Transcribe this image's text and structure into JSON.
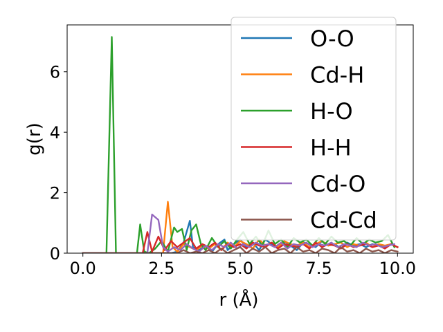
{
  "chart_data": {
    "type": "line",
    "title": "",
    "xlabel": "r (Å)",
    "ylabel": "g(r)",
    "xlim": [
      -0.5,
      10.5
    ],
    "ylim": [
      0,
      7.55
    ],
    "xticks": [
      0.0,
      2.5,
      5.0,
      7.5,
      10.0
    ],
    "xtick_labels": [
      "0.0",
      "2.5",
      "5.0",
      "7.5",
      "10.0"
    ],
    "yticks": [
      0,
      2,
      4,
      6
    ],
    "ytick_labels": [
      "0",
      "2",
      "4",
      "6"
    ],
    "grid": false,
    "legend_position": "top-right",
    "series": [
      {
        "name": "O-O",
        "color": "#1f77b4",
        "x": [
          0.0,
          0.5,
          1.0,
          1.5,
          2.0,
          2.5,
          2.8,
          3.0,
          3.2,
          3.4,
          3.5,
          3.7,
          3.9,
          4.1,
          4.3,
          4.5,
          4.6,
          4.8,
          5.0,
          5.2,
          5.4,
          5.6,
          5.8,
          6.0,
          6.2,
          6.4,
          6.6,
          6.8,
          7.0,
          7.2,
          7.4,
          7.6,
          7.8,
          8.0,
          8.2,
          8.4,
          8.6,
          8.8,
          9.0,
          9.2,
          9.4,
          9.6,
          9.8,
          10.0
        ],
        "y": [
          0,
          0,
          0,
          0,
          0,
          0,
          0,
          0.05,
          0.35,
          1.07,
          0.2,
          0.1,
          0.25,
          0.05,
          0.3,
          0.45,
          0.1,
          0.3,
          0.45,
          0.2,
          0.35,
          0.1,
          0.45,
          0.3,
          0.15,
          0.4,
          0.25,
          0.1,
          0.35,
          0.3,
          0.2,
          0.4,
          0.25,
          0.3,
          0.15,
          0.35,
          0.25,
          0.3,
          0.2,
          0.3,
          0.25,
          0.2,
          0.3,
          0.2
        ]
      },
      {
        "name": "Cd-H",
        "color": "#ff7f0e",
        "x": [
          0.0,
          0.5,
          1.0,
          1.5,
          2.0,
          2.4,
          2.55,
          2.7,
          2.85,
          3.0,
          3.2,
          3.4,
          3.6,
          3.8,
          4.0,
          4.2,
          4.4,
          4.6,
          4.8,
          5.0,
          5.2,
          5.4,
          5.6,
          5.8,
          6.0,
          6.2,
          6.4,
          6.6,
          6.8,
          7.0,
          7.2,
          7.4,
          7.6,
          7.8,
          8.0,
          8.2,
          8.4,
          8.6,
          8.8,
          9.0,
          9.2,
          9.4,
          9.6,
          9.8,
          10.0
        ],
        "y": [
          0,
          0,
          0,
          0,
          0,
          0,
          0,
          1.7,
          0.2,
          0.05,
          0.3,
          0.2,
          0.1,
          0.25,
          0.15,
          0.3,
          0.1,
          0.35,
          0.2,
          0.4,
          0.3,
          0.15,
          0.45,
          0.25,
          0.35,
          0.2,
          0.4,
          0.3,
          0.25,
          0.35,
          0.2,
          0.3,
          0.4,
          0.25,
          0.3,
          0.35,
          0.2,
          0.3,
          0.25,
          0.35,
          0.2,
          0.3,
          0.25,
          0.3,
          0.2
        ]
      },
      {
        "name": "H-O",
        "color": "#2ca02c",
        "x": [
          0.0,
          0.5,
          0.75,
          0.92,
          1.05,
          1.3,
          1.6,
          1.72,
          1.82,
          1.95,
          2.1,
          2.3,
          2.5,
          2.7,
          2.9,
          3.0,
          3.15,
          3.3,
          3.45,
          3.6,
          3.75,
          3.9,
          4.1,
          4.3,
          4.5,
          4.7,
          4.9,
          5.1,
          5.3,
          5.5,
          5.7,
          5.9,
          6.1,
          6.3,
          6.5,
          6.7,
          6.9,
          7.1,
          7.3,
          7.5,
          7.7,
          7.9,
          8.1,
          8.3,
          8.5,
          8.7,
          8.9,
          9.1,
          9.3,
          9.5,
          9.7,
          9.9
        ],
        "y": [
          0,
          0,
          0,
          7.15,
          0,
          0,
          0,
          0,
          0.95,
          0.05,
          0,
          0.15,
          0.4,
          0.05,
          0.85,
          0.7,
          0.8,
          0.1,
          0.75,
          0.95,
          0.3,
          0.1,
          0.5,
          0.2,
          0.4,
          0.15,
          0.45,
          0.7,
          0.3,
          0.55,
          0.25,
          0.75,
          0.3,
          0.45,
          0.2,
          0.5,
          0.35,
          0.45,
          0.25,
          0.5,
          0.3,
          0.55,
          0.35,
          0.4,
          0.25,
          0.5,
          0.3,
          0.45,
          0.35,
          0.4,
          0.6,
          0.2
        ]
      },
      {
        "name": "H-H",
        "color": "#d62728",
        "x": [
          0.0,
          0.5,
          1.0,
          1.5,
          1.9,
          2.05,
          2.2,
          2.4,
          2.6,
          2.8,
          3.0,
          3.2,
          3.4,
          3.6,
          3.8,
          4.0,
          4.2,
          4.4,
          4.6,
          4.8,
          5.0,
          5.2,
          5.4,
          5.6,
          5.8,
          6.0,
          6.2,
          6.4,
          6.6,
          6.8,
          7.0,
          7.2,
          7.4,
          7.6,
          7.8,
          8.0,
          8.2,
          8.4,
          8.6,
          8.8,
          9.0,
          9.2,
          9.4,
          9.6,
          9.8,
          10.0
        ],
        "y": [
          0,
          0,
          0,
          0,
          0,
          0.7,
          0.05,
          0.55,
          0.1,
          0.4,
          0.2,
          0.35,
          0.5,
          0.15,
          0.3,
          0.2,
          0.35,
          0.1,
          0.3,
          0.2,
          0.3,
          0.15,
          0.35,
          0.25,
          0.2,
          0.35,
          0.15,
          0.3,
          0.25,
          0.2,
          0.3,
          0.15,
          0.35,
          0.2,
          0.3,
          0.25,
          0.15,
          0.3,
          0.2,
          0.25,
          0.3,
          0.2,
          0.25,
          0.15,
          0.3,
          0.2
        ]
      },
      {
        "name": "Cd-O",
        "color": "#9467bd",
        "x": [
          0.0,
          0.5,
          1.0,
          1.5,
          1.9,
          2.05,
          2.2,
          2.4,
          2.55,
          2.7,
          2.9,
          3.1,
          3.3,
          3.5,
          3.7,
          3.9,
          4.1,
          4.3,
          4.5,
          4.7,
          4.9,
          5.1,
          5.3,
          5.5,
          5.7,
          5.9,
          6.1,
          6.3,
          6.5,
          6.7,
          6.9,
          7.1,
          7.3,
          7.5,
          7.7,
          7.9,
          8.1,
          8.3,
          8.5,
          8.7,
          8.9,
          9.1,
          9.3,
          9.5,
          9.7,
          9.9
        ],
        "y": [
          0,
          0,
          0,
          0,
          0,
          0,
          1.28,
          1.1,
          0.2,
          0.05,
          0.2,
          0.1,
          0.3,
          0.15,
          0.05,
          0.25,
          0.1,
          0.3,
          0.2,
          0.35,
          0.15,
          0.3,
          0.2,
          0.35,
          0.25,
          0.3,
          0.2,
          0.35,
          0.15,
          0.3,
          0.25,
          0.35,
          0.2,
          0.3,
          0.25,
          0.35,
          0.2,
          0.3,
          0.25,
          0.2,
          0.35,
          0.25,
          0.3,
          0.2,
          0.25,
          0.3
        ]
      },
      {
        "name": "Cd-Cd",
        "color": "#8c564b",
        "x": [
          0.0,
          0.5,
          1.0,
          1.5,
          2.0,
          2.5,
          3.0,
          3.2,
          3.4,
          3.6,
          3.8,
          4.0,
          4.2,
          4.4,
          4.6,
          4.8,
          5.0,
          5.2,
          5.4,
          5.6,
          5.8,
          6.0,
          6.2,
          6.4,
          6.6,
          6.8,
          7.0,
          7.2,
          7.4,
          7.6,
          7.8,
          8.0,
          8.2,
          8.4,
          8.6,
          8.8,
          9.0,
          9.2,
          9.4,
          9.6,
          9.8,
          10.0
        ],
        "y": [
          0,
          0,
          0,
          0,
          0,
          0,
          0,
          0.1,
          0,
          0.05,
          0,
          0.1,
          0,
          0.15,
          0,
          0.1,
          0.2,
          0,
          0.15,
          0.05,
          0.2,
          0,
          0.1,
          0.15,
          0,
          0.2,
          0.05,
          0.1,
          0,
          0.15,
          0.1,
          0,
          0.2,
          0.05,
          0.1,
          0,
          0.15,
          0.05,
          0.1,
          0,
          0.1,
          0.05
        ]
      }
    ]
  }
}
